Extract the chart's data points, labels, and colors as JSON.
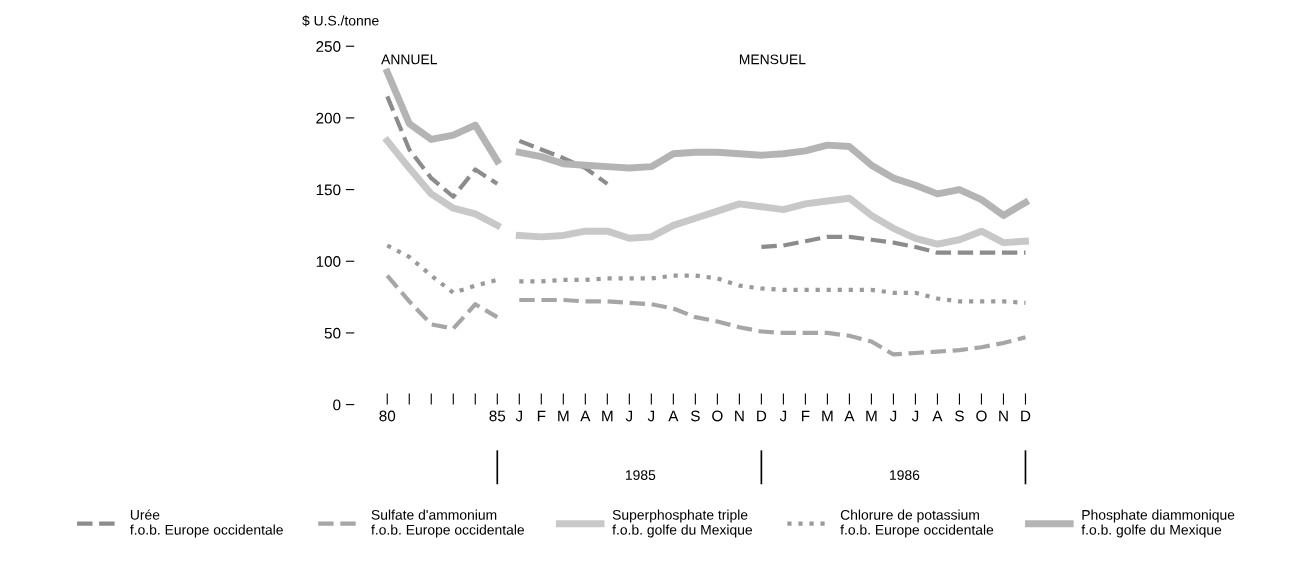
{
  "chart_data": {
    "type": "line",
    "ylabel": "$ U.S./tonne",
    "categories": [
      "80",
      null,
      null,
      null,
      null,
      "85",
      "J",
      "F",
      "M",
      "A",
      "M",
      "J",
      "J",
      "A",
      "S",
      "O",
      "N",
      "D",
      "J",
      "F",
      "M",
      "A",
      "M",
      "J",
      "J",
      "A",
      "S",
      "O",
      "N",
      "D"
    ],
    "ylim": [
      0,
      250
    ],
    "yticks": [
      0,
      50,
      100,
      150,
      200,
      250
    ],
    "grid": false,
    "legend": "bottom",
    "marker": "none",
    "annotations": [
      "ANNUEL",
      "MENSUEL",
      "1985",
      "1986"
    ],
    "series": [
      {
        "name": "Urée\nf.o.b. Europe occidentale",
        "color": "#8c8c8c",
        "line_style": "dashed",
        "values": [
          215,
          178,
          158,
          145,
          164,
          154,
          null,
          null,
          null,
          null,
          null,
          null,
          null,
          null,
          null,
          null,
          null,
          null,
          null,
          null,
          null,
          null,
          null,
          null,
          null,
          null,
          null,
          null,
          null,
          null
        ]
      },
      {
        "color": "#8c8c8c",
        "line_style": "dashed",
        "values": [
          null,
          null,
          null,
          null,
          null,
          null,
          184,
          178,
          172,
          165,
          154,
          null,
          null,
          null,
          null,
          null,
          null,
          110,
          111,
          114,
          117,
          117,
          115,
          113,
          110,
          106,
          106,
          106,
          106,
          106
        ]
      },
      {
        "name": "Sulfate d'ammonium\nf.o.b. Europe occidentale",
        "color": "#a6a6a6",
        "line_style": "dashed",
        "values": [
          90,
          72,
          56,
          53,
          70,
          61,
          null,
          null,
          null,
          null,
          null,
          null,
          null,
          null,
          null,
          null,
          null,
          null,
          null,
          null,
          null,
          null,
          null,
          null,
          null,
          null,
          null,
          null,
          null,
          null
        ]
      },
      {
        "color": "#a6a6a6",
        "line_style": "dashed",
        "values": [
          null,
          null,
          null,
          null,
          null,
          null,
          73,
          73,
          73,
          72,
          72,
          71,
          70,
          67,
          61,
          58,
          54,
          51,
          50,
          50,
          50,
          48,
          44,
          35,
          36,
          37,
          38,
          40,
          43,
          47
        ]
      },
      {
        "name": "Superphosphate triple\nf.o.b. golfe du Mexique",
        "color": "#c8c8c8",
        "line_style": "solid",
        "values": [
          184,
          165,
          147,
          137,
          133,
          125,
          null,
          null,
          null,
          null,
          null,
          null,
          null,
          null,
          null,
          null,
          null,
          null,
          null,
          null,
          null,
          null,
          null,
          null,
          null,
          null,
          null,
          null,
          null,
          null
        ]
      },
      {
        "color": "#c8c8c8",
        "line_style": "solid",
        "values": [
          null,
          null,
          null,
          null,
          null,
          null,
          118,
          117,
          118,
          121,
          121,
          116,
          117,
          125,
          130,
          135,
          140,
          138,
          136,
          140,
          142,
          144,
          132,
          123,
          116,
          112,
          115,
          121,
          113,
          114
        ]
      },
      {
        "name": "Chlorure de potassium\nf.o.b. Europe occidentale",
        "color": "#9a9a9a",
        "line_style": "dotted",
        "values": [
          111,
          103,
          90,
          78,
          83,
          87,
          null,
          null,
          null,
          null,
          null,
          null,
          null,
          null,
          null,
          null,
          null,
          null,
          null,
          null,
          null,
          null,
          null,
          null,
          null,
          null,
          null,
          null,
          null,
          null
        ]
      },
      {
        "color": "#9a9a9a",
        "line_style": "dotted",
        "values": [
          null,
          null,
          null,
          null,
          null,
          null,
          86,
          86,
          87,
          87,
          88,
          88,
          88,
          90,
          90,
          88,
          83,
          81,
          80,
          80,
          80,
          80,
          80,
          78,
          78,
          74,
          72,
          72,
          72,
          71
        ]
      },
      {
        "name": "Phosphate diammonique\nf.o.b. golfe du Mexique",
        "color": "#b4b4b4",
        "line_style": "solid",
        "values": [
          232,
          196,
          185,
          188,
          195,
          170,
          null,
          null,
          null,
          null,
          null,
          null,
          null,
          null,
          null,
          null,
          null,
          null,
          null,
          null,
          null,
          null,
          null,
          null,
          null,
          null,
          null,
          null,
          null,
          null
        ]
      },
      {
        "color": "#b4b4b4",
        "line_style": "solid",
        "values": [
          null,
          null,
          null,
          null,
          null,
          null,
          176,
          173,
          168,
          167,
          166,
          165,
          166,
          175,
          176,
          176,
          175,
          174,
          175,
          177,
          181,
          180,
          167,
          158,
          153,
          147,
          150,
          143,
          132,
          141
        ]
      }
    ]
  }
}
